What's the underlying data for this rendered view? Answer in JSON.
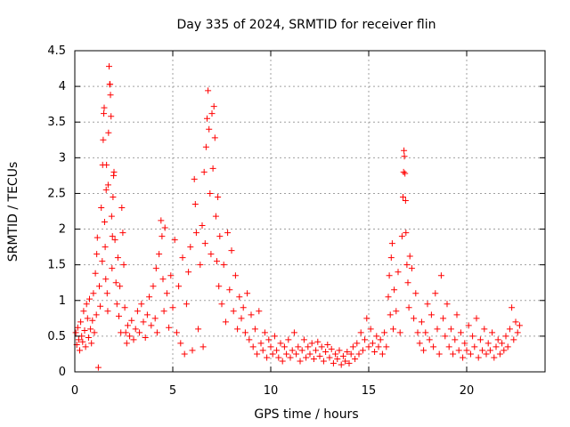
{
  "chart_data": {
    "type": "scatter",
    "title": "Day 335 of 2024, SRMTID for receiver flin",
    "xlabel": "GPS time / hours",
    "ylabel": "SRMTID / TECUs",
    "xlim": [
      0,
      24
    ],
    "ylim": [
      0,
      4.5
    ],
    "xticks": [
      0,
      5,
      10,
      15,
      20
    ],
    "xtick_labels": [
      "0",
      "5",
      "10",
      "15",
      "20"
    ],
    "yticks": [
      0,
      0.5,
      1,
      1.5,
      2,
      2.5,
      3,
      3.5,
      4,
      4.5
    ],
    "ytick_labels": [
      "0",
      "0.5",
      "1",
      "1.5",
      "2",
      "2.5",
      "3",
      "3.5",
      "4",
      "4.5"
    ],
    "grid": true,
    "marker": "+",
    "color": "#ff0000",
    "series": [
      {
        "name": "SRMTID",
        "points": [
          [
            0.05,
            0.55
          ],
          [
            0.1,
            0.38
          ],
          [
            0.15,
            0.62
          ],
          [
            0.2,
            0.45
          ],
          [
            0.25,
            0.3
          ],
          [
            0.3,
            0.7
          ],
          [
            0.35,
            0.5
          ],
          [
            0.4,
            0.42
          ],
          [
            0.45,
            0.85
          ],
          [
            0.5,
            0.58
          ],
          [
            0.55,
            0.35
          ],
          [
            0.6,
            0.95
          ],
          [
            0.65,
            0.75
          ],
          [
            0.7,
            0.48
          ],
          [
            0.75,
            1.02
          ],
          [
            0.8,
            0.6
          ],
          [
            0.85,
            0.4
          ],
          [
            0.9,
            0.72
          ],
          [
            0.95,
            1.1
          ],
          [
            1.0,
            0.55
          ],
          [
            1.05,
            1.38
          ],
          [
            1.1,
            0.8
          ],
          [
            1.12,
            1.65
          ],
          [
            1.15,
            1.88
          ],
          [
            1.2,
            0.06
          ],
          [
            1.25,
            1.2
          ],
          [
            1.3,
            0.92
          ],
          [
            1.35,
            2.3
          ],
          [
            1.4,
            1.55
          ],
          [
            1.42,
            2.9
          ],
          [
            1.45,
            3.25
          ],
          [
            1.48,
            3.62
          ],
          [
            1.5,
            3.7
          ],
          [
            1.52,
            2.1
          ],
          [
            1.55,
            1.75
          ],
          [
            1.58,
            1.3
          ],
          [
            1.6,
            2.55
          ],
          [
            1.62,
            2.9
          ],
          [
            1.65,
            1.1
          ],
          [
            1.68,
            0.85
          ],
          [
            1.7,
            2.62
          ],
          [
            1.72,
            3.35
          ],
          [
            1.75,
            4.28
          ],
          [
            1.78,
            4.03
          ],
          [
            1.8,
            4.03
          ],
          [
            1.82,
            3.88
          ],
          [
            1.85,
            3.58
          ],
          [
            1.88,
            2.18
          ],
          [
            1.9,
            1.45
          ],
          [
            1.92,
            1.9
          ],
          [
            1.95,
            2.45
          ],
          [
            1.98,
            2.75
          ],
          [
            2.0,
            2.8
          ],
          [
            2.05,
            1.85
          ],
          [
            2.1,
            1.25
          ],
          [
            2.15,
            0.95
          ],
          [
            2.2,
            1.6
          ],
          [
            2.25,
            0.78
          ],
          [
            2.3,
            1.2
          ],
          [
            2.35,
            0.55
          ],
          [
            2.4,
            2.3
          ],
          [
            2.45,
            1.95
          ],
          [
            2.5,
            1.5
          ],
          [
            2.55,
            0.9
          ],
          [
            2.6,
            0.55
          ],
          [
            2.65,
            0.4
          ],
          [
            2.7,
            0.65
          ],
          [
            2.8,
            0.5
          ],
          [
            2.9,
            0.72
          ],
          [
            3.0,
            0.45
          ],
          [
            3.1,
            0.6
          ],
          [
            3.2,
            0.85
          ],
          [
            3.3,
            0.55
          ],
          [
            3.4,
            0.95
          ],
          [
            3.5,
            0.7
          ],
          [
            3.6,
            0.48
          ],
          [
            3.7,
            0.8
          ],
          [
            3.8,
            1.05
          ],
          [
            3.9,
            0.65
          ],
          [
            4.0,
            1.2
          ],
          [
            4.1,
            0.75
          ],
          [
            4.15,
            1.45
          ],
          [
            4.2,
            0.55
          ],
          [
            4.3,
            1.65
          ],
          [
            4.4,
            2.12
          ],
          [
            4.45,
            1.9
          ],
          [
            4.5,
            1.3
          ],
          [
            4.55,
            0.85
          ],
          [
            4.6,
            2.02
          ],
          [
            4.7,
            1.1
          ],
          [
            4.8,
            0.62
          ],
          [
            4.9,
            1.35
          ],
          [
            5.0,
            0.9
          ],
          [
            5.1,
            1.85
          ],
          [
            5.2,
            0.55
          ],
          [
            5.3,
            1.2
          ],
          [
            5.4,
            0.4
          ],
          [
            5.5,
            1.6
          ],
          [
            5.6,
            0.25
          ],
          [
            5.7,
            0.95
          ],
          [
            5.8,
            1.4
          ],
          [
            5.9,
            1.75
          ],
          [
            6.0,
            0.3
          ],
          [
            6.1,
            2.7
          ],
          [
            6.15,
            2.35
          ],
          [
            6.2,
            1.95
          ],
          [
            6.3,
            0.6
          ],
          [
            6.4,
            1.5
          ],
          [
            6.5,
            2.05
          ],
          [
            6.55,
            0.35
          ],
          [
            6.6,
            2.8
          ],
          [
            6.65,
            1.8
          ],
          [
            6.7,
            3.15
          ],
          [
            6.75,
            3.55
          ],
          [
            6.8,
            3.94
          ],
          [
            6.85,
            3.4
          ],
          [
            6.9,
            2.5
          ],
          [
            6.95,
            1.65
          ],
          [
            7.0,
            3.62
          ],
          [
            7.05,
            2.85
          ],
          [
            7.1,
            3.72
          ],
          [
            7.15,
            3.28
          ],
          [
            7.2,
            2.18
          ],
          [
            7.25,
            1.55
          ],
          [
            7.3,
            2.45
          ],
          [
            7.35,
            1.2
          ],
          [
            7.4,
            1.9
          ],
          [
            7.5,
            0.95
          ],
          [
            7.6,
            1.5
          ],
          [
            7.7,
            0.7
          ],
          [
            7.8,
            1.95
          ],
          [
            7.9,
            1.15
          ],
          [
            8.0,
            1.7
          ],
          [
            8.1,
            0.85
          ],
          [
            8.2,
            1.35
          ],
          [
            8.3,
            0.6
          ],
          [
            8.4,
            1.05
          ],
          [
            8.5,
            0.75
          ],
          [
            8.6,
            0.9
          ],
          [
            8.7,
            0.55
          ],
          [
            8.8,
            1.1
          ],
          [
            8.9,
            0.45
          ],
          [
            9.0,
            0.8
          ],
          [
            9.1,
            0.35
          ],
          [
            9.2,
            0.6
          ],
          [
            9.3,
            0.25
          ],
          [
            9.4,
            0.85
          ],
          [
            9.5,
            0.4
          ],
          [
            9.6,
            0.3
          ],
          [
            9.7,
            0.55
          ],
          [
            9.8,
            0.2
          ],
          [
            9.9,
            0.45
          ],
          [
            10.0,
            0.35
          ],
          [
            10.1,
            0.25
          ],
          [
            10.2,
            0.5
          ],
          [
            10.3,
            0.3
          ],
          [
            10.4,
            0.2
          ],
          [
            10.5,
            0.4
          ],
          [
            10.6,
            0.15
          ],
          [
            10.7,
            0.35
          ],
          [
            10.8,
            0.25
          ],
          [
            10.9,
            0.45
          ],
          [
            11.0,
            0.2
          ],
          [
            11.1,
            0.3
          ],
          [
            11.2,
            0.55
          ],
          [
            11.3,
            0.25
          ],
          [
            11.4,
            0.35
          ],
          [
            11.5,
            0.15
          ],
          [
            11.6,
            0.3
          ],
          [
            11.7,
            0.45
          ],
          [
            11.8,
            0.2
          ],
          [
            11.9,
            0.35
          ],
          [
            12.0,
            0.25
          ],
          [
            12.1,
            0.4
          ],
          [
            12.2,
            0.18
          ],
          [
            12.3,
            0.3
          ],
          [
            12.4,
            0.42
          ],
          [
            12.5,
            0.22
          ],
          [
            12.6,
            0.35
          ],
          [
            12.7,
            0.15
          ],
          [
            12.8,
            0.28
          ],
          [
            12.9,
            0.38
          ],
          [
            13.0,
            0.2
          ],
          [
            13.1,
            0.32
          ],
          [
            13.2,
            0.12
          ],
          [
            13.3,
            0.25
          ],
          [
            13.4,
            0.18
          ],
          [
            13.5,
            0.3
          ],
          [
            13.6,
            0.1
          ],
          [
            13.7,
            0.22
          ],
          [
            13.8,
            0.15
          ],
          [
            13.9,
            0.28
          ],
          [
            14.0,
            0.12
          ],
          [
            14.1,
            0.25
          ],
          [
            14.2,
            0.35
          ],
          [
            14.3,
            0.18
          ],
          [
            14.4,
            0.4
          ],
          [
            14.5,
            0.25
          ],
          [
            14.6,
            0.55
          ],
          [
            14.7,
            0.3
          ],
          [
            14.8,
            0.45
          ],
          [
            14.9,
            0.75
          ],
          [
            15.0,
            0.35
          ],
          [
            15.1,
            0.6
          ],
          [
            15.2,
            0.4
          ],
          [
            15.3,
            0.28
          ],
          [
            15.4,
            0.5
          ],
          [
            15.5,
            0.35
          ],
          [
            15.6,
            0.45
          ],
          [
            15.7,
            0.25
          ],
          [
            15.8,
            0.55
          ],
          [
            15.9,
            0.35
          ],
          [
            16.0,
            1.05
          ],
          [
            16.05,
            1.35
          ],
          [
            16.1,
            0.8
          ],
          [
            16.15,
            1.6
          ],
          [
            16.2,
            1.8
          ],
          [
            16.25,
            0.6
          ],
          [
            16.3,
            1.15
          ],
          [
            16.4,
            0.85
          ],
          [
            16.5,
            1.4
          ],
          [
            16.6,
            0.55
          ],
          [
            16.7,
            1.9
          ],
          [
            16.75,
            2.45
          ],
          [
            16.78,
            2.8
          ],
          [
            16.8,
            3.1
          ],
          [
            16.82,
            3.02
          ],
          [
            16.85,
            2.78
          ],
          [
            16.88,
            2.4
          ],
          [
            16.9,
            1.95
          ],
          [
            16.95,
            1.5
          ],
          [
            17.0,
            1.25
          ],
          [
            17.05,
            0.9
          ],
          [
            17.1,
            1.62
          ],
          [
            17.2,
            1.45
          ],
          [
            17.3,
            0.75
          ],
          [
            17.4,
            1.1
          ],
          [
            17.5,
            0.55
          ],
          [
            17.6,
            0.4
          ],
          [
            17.7,
            0.7
          ],
          [
            17.8,
            0.3
          ],
          [
            17.9,
            0.55
          ],
          [
            18.0,
            0.95
          ],
          [
            18.1,
            0.45
          ],
          [
            18.2,
            0.8
          ],
          [
            18.3,
            0.35
          ],
          [
            18.4,
            1.1
          ],
          [
            18.5,
            0.6
          ],
          [
            18.6,
            0.25
          ],
          [
            18.7,
            1.35
          ],
          [
            18.8,
            0.75
          ],
          [
            18.9,
            0.5
          ],
          [
            19.0,
            0.95
          ],
          [
            19.1,
            0.35
          ],
          [
            19.2,
            0.6
          ],
          [
            19.3,
            0.25
          ],
          [
            19.4,
            0.45
          ],
          [
            19.5,
            0.8
          ],
          [
            19.6,
            0.3
          ],
          [
            19.7,
            0.55
          ],
          [
            19.8,
            0.2
          ],
          [
            19.9,
            0.4
          ],
          [
            20.0,
            0.3
          ],
          [
            20.1,
            0.65
          ],
          [
            20.2,
            0.25
          ],
          [
            20.3,
            0.5
          ],
          [
            20.4,
            0.35
          ],
          [
            20.5,
            0.75
          ],
          [
            20.6,
            0.2
          ],
          [
            20.7,
            0.45
          ],
          [
            20.8,
            0.3
          ],
          [
            20.9,
            0.6
          ],
          [
            21.0,
            0.25
          ],
          [
            21.1,
            0.4
          ],
          [
            21.2,
            0.3
          ],
          [
            21.3,
            0.55
          ],
          [
            21.4,
            0.2
          ],
          [
            21.5,
            0.35
          ],
          [
            21.6,
            0.45
          ],
          [
            21.7,
            0.25
          ],
          [
            21.8,
            0.4
          ],
          [
            21.9,
            0.3
          ],
          [
            22.0,
            0.5
          ],
          [
            22.1,
            0.35
          ],
          [
            22.2,
            0.6
          ],
          [
            22.3,
            0.9
          ],
          [
            22.4,
            0.45
          ],
          [
            22.5,
            0.7
          ],
          [
            22.6,
            0.55
          ],
          [
            22.7,
            0.65
          ]
        ]
      }
    ]
  }
}
